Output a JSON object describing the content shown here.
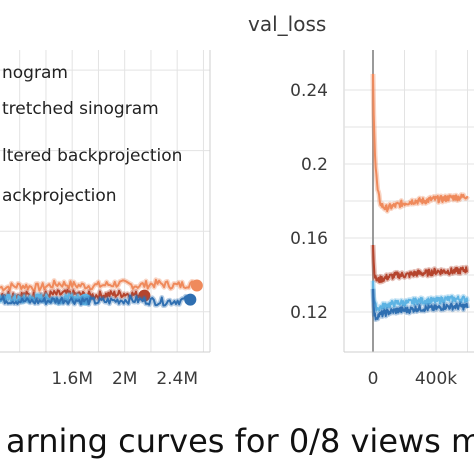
{
  "caption": "arning curves for 0/8 views m",
  "colors": {
    "sinogram": "#ef8a5c",
    "stretched": "#b5442d",
    "filtered": "#5db3e3",
    "backprojection": "#2f6fb1",
    "grid": "#e3e3e3",
    "axis": "#9a9a9a"
  },
  "chart_data": [
    {
      "type": "line",
      "title": "",
      "legend": {
        "placement": "top-left",
        "entries": [
          "nogram",
          "tretched sinogram",
          "ltered backprojection",
          "ackprojection"
        ]
      },
      "x_ticks": [
        {
          "value": 1.6,
          "label": "1.6M"
        },
        {
          "value": 2.0,
          "label": "2M"
        },
        {
          "value": 2.4,
          "label": "2.4M"
        }
      ],
      "xlim": [
        1.05,
        2.65
      ],
      "ylim": [
        0.1,
        0.25
      ],
      "grid": true,
      "series": [
        {
          "key": "sinogram",
          "x": [
            1.05,
            1.2,
            1.35,
            1.5,
            1.65,
            1.8,
            1.95,
            2.1,
            2.25,
            2.4,
            2.5,
            2.55
          ],
          "y": [
            0.132,
            0.133,
            0.132,
            0.134,
            0.133,
            0.133,
            0.134,
            0.133,
            0.134,
            0.133,
            0.134,
            0.133
          ]
        },
        {
          "key": "stretched",
          "x": [
            1.05,
            1.3,
            1.55,
            1.75,
            2.0,
            2.15
          ],
          "y": [
            0.129,
            0.128,
            0.129,
            0.128,
            0.129,
            0.128
          ]
        },
        {
          "key": "filtered",
          "x": [
            1.05,
            1.2,
            1.35,
            1.5,
            1.6,
            1.7
          ],
          "y": [
            0.127,
            0.126,
            0.127,
            0.126,
            0.127,
            0.126
          ]
        },
        {
          "key": "backprojection",
          "x": [
            1.05,
            1.3,
            1.55,
            1.8,
            2.05,
            2.3,
            2.5
          ],
          "y": [
            0.126,
            0.125,
            0.126,
            0.125,
            0.126,
            0.125,
            0.126
          ]
        }
      ]
    },
    {
      "type": "line",
      "title": "val_loss",
      "y_ticks": [
        {
          "value": 0.12,
          "label": "0.12"
        },
        {
          "value": 0.16,
          "label": "0.16"
        },
        {
          "value": 0.2,
          "label": "0.2"
        },
        {
          "value": 0.24,
          "label": "0.24"
        }
      ],
      "x_ticks": [
        {
          "value": 0,
          "label": "0"
        },
        {
          "value": 400,
          "label": "400k"
        }
      ],
      "xlim": [
        -60,
        600
      ],
      "ylim": [
        0.1,
        0.255
      ],
      "grid": true,
      "series": [
        {
          "key": "sinogram",
          "x": [
            0,
            5,
            15,
            30,
            50,
            80,
            120,
            160,
            200,
            260,
            320,
            380,
            440,
            500,
            560,
            600
          ],
          "y": [
            0.248,
            0.225,
            0.2,
            0.185,
            0.178,
            0.176,
            0.177,
            0.178,
            0.179,
            0.18,
            0.18,
            0.181,
            0.181,
            0.182,
            0.182,
            0.183
          ]
        },
        {
          "key": "stretched",
          "x": [
            0,
            5,
            15,
            30,
            60,
            100,
            160,
            220,
            280,
            340,
            400,
            460,
            520,
            600
          ],
          "y": [
            0.157,
            0.145,
            0.138,
            0.137,
            0.138,
            0.139,
            0.14,
            0.14,
            0.141,
            0.141,
            0.142,
            0.142,
            0.142,
            0.143
          ]
        },
        {
          "key": "filtered",
          "x": [
            0,
            5,
            15,
            30,
            60,
            100,
            160,
            220,
            280,
            340,
            400,
            460,
            520,
            600
          ],
          "y": [
            0.138,
            0.127,
            0.123,
            0.122,
            0.123,
            0.124,
            0.125,
            0.125,
            0.126,
            0.126,
            0.126,
            0.127,
            0.127,
            0.127
          ]
        },
        {
          "key": "backprojection",
          "x": [
            0,
            5,
            15,
            30,
            60,
            100,
            160,
            220,
            280,
            340,
            400,
            460,
            520,
            600
          ],
          "y": [
            0.134,
            0.12,
            0.117,
            0.118,
            0.119,
            0.12,
            0.121,
            0.121,
            0.122,
            0.122,
            0.122,
            0.123,
            0.123,
            0.123
          ]
        }
      ]
    }
  ]
}
